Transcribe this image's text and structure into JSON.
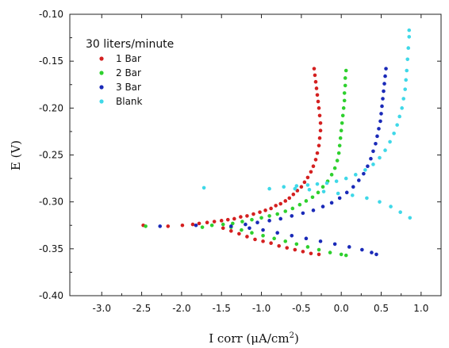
{
  "chart_data": {
    "type": "scatter",
    "title": "",
    "xlabel": "I corr (μA/cm²)",
    "xlabel_main": "I corr (",
    "xlabel_unit_mu": "μ",
    "xlabel_unit_rest": "A/cm",
    "xlabel_unit_sup": "2",
    "xlabel_close": ")",
    "ylabel": "E (V)",
    "xlim": [
      -3.4,
      1.25
    ],
    "ylim": [
      -0.4,
      -0.1
    ],
    "x_ticks": [
      "-3.0",
      "-2.5",
      "-2.0",
      "-1.5",
      "-1.0",
      "-0.5",
      "0.0",
      "0.5",
      "1.0"
    ],
    "x_tick_values": [
      -3.0,
      -2.5,
      -2.0,
      -1.5,
      -1.0,
      -0.5,
      0.0,
      0.5,
      1.0
    ],
    "y_ticks": [
      "-0.10",
      "-0.15",
      "-0.20",
      "-0.25",
      "-0.30",
      "-0.35",
      "-0.40"
    ],
    "y_tick_values": [
      -0.1,
      -0.15,
      -0.2,
      -0.25,
      -0.3,
      -0.35,
      -0.4
    ],
    "grid": false,
    "legend": {
      "title": "30 liters/minute",
      "placement": "top-left"
    },
    "series": [
      {
        "name": "1 Bar",
        "color": "#d42020",
        "points": [
          [
            -2.48,
            -0.325
          ],
          [
            -2.17,
            -0.326
          ],
          [
            -1.99,
            -0.325
          ],
          [
            -1.86,
            -0.324
          ],
          [
            -1.78,
            -0.323
          ],
          [
            -1.68,
            -0.322
          ],
          [
            -1.59,
            -0.321
          ],
          [
            -1.5,
            -0.32
          ],
          [
            -1.42,
            -0.319
          ],
          [
            -1.34,
            -0.318
          ],
          [
            -1.26,
            -0.316
          ],
          [
            -1.18,
            -0.315
          ],
          [
            -1.1,
            -0.313
          ],
          [
            -1.02,
            -0.311
          ],
          [
            -0.95,
            -0.309
          ],
          [
            -0.88,
            -0.307
          ],
          [
            -0.82,
            -0.304
          ],
          [
            -0.76,
            -0.302
          ],
          [
            -0.7,
            -0.299
          ],
          [
            -0.65,
            -0.296
          ],
          [
            -0.6,
            -0.292
          ],
          [
            -0.55,
            -0.288
          ],
          [
            -0.5,
            -0.284
          ],
          [
            -0.46,
            -0.279
          ],
          [
            -0.42,
            -0.274
          ],
          [
            -0.38,
            -0.268
          ],
          [
            -0.35,
            -0.262
          ],
          [
            -0.32,
            -0.255
          ],
          [
            -0.3,
            -0.248
          ],
          [
            -0.28,
            -0.24
          ],
          [
            -0.27,
            -0.232
          ],
          [
            -0.26,
            -0.224
          ],
          [
            -0.26,
            -0.216
          ],
          [
            -0.27,
            -0.208
          ],
          [
            -0.28,
            -0.2
          ],
          [
            -0.29,
            -0.193
          ],
          [
            -0.3,
            -0.186
          ],
          [
            -0.31,
            -0.179
          ],
          [
            -0.32,
            -0.172
          ],
          [
            -0.33,
            -0.165
          ],
          [
            -0.34,
            -0.158
          ],
          [
            -1.48,
            -0.328
          ],
          [
            -1.38,
            -0.331
          ],
          [
            -1.28,
            -0.334
          ],
          [
            -1.18,
            -0.337
          ],
          [
            -1.08,
            -0.34
          ],
          [
            -0.98,
            -0.342
          ],
          [
            -0.88,
            -0.344
          ],
          [
            -0.78,
            -0.347
          ],
          [
            -0.68,
            -0.349
          ],
          [
            -0.58,
            -0.351
          ],
          [
            -0.48,
            -0.353
          ],
          [
            -0.38,
            -0.355
          ],
          [
            -0.28,
            -0.356
          ]
        ]
      },
      {
        "name": "2 Bar",
        "color": "#2ed02e",
        "points": [
          [
            -2.45,
            -0.326
          ],
          [
            -1.74,
            -0.327
          ],
          [
            -1.62,
            -0.325
          ],
          [
            -1.48,
            -0.324
          ],
          [
            -1.36,
            -0.323
          ],
          [
            -1.24,
            -0.321
          ],
          [
            -1.12,
            -0.319
          ],
          [
            -1.0,
            -0.317
          ],
          [
            -0.9,
            -0.315
          ],
          [
            -0.8,
            -0.313
          ],
          [
            -0.7,
            -0.31
          ],
          [
            -0.61,
            -0.307
          ],
          [
            -0.52,
            -0.303
          ],
          [
            -0.44,
            -0.299
          ],
          [
            -0.36,
            -0.295
          ],
          [
            -0.29,
            -0.29
          ],
          [
            -0.23,
            -0.284
          ],
          [
            -0.17,
            -0.278
          ],
          [
            -0.12,
            -0.271
          ],
          [
            -0.08,
            -0.264
          ],
          [
            -0.05,
            -0.256
          ],
          [
            -0.03,
            -0.248
          ],
          [
            -0.02,
            -0.24
          ],
          [
            -0.01,
            -0.232
          ],
          [
            0.0,
            -0.224
          ],
          [
            0.01,
            -0.216
          ],
          [
            0.02,
            -0.208
          ],
          [
            0.03,
            -0.2
          ],
          [
            0.04,
            -0.192
          ],
          [
            0.04,
            -0.184
          ],
          [
            0.05,
            -0.176
          ],
          [
            0.05,
            -0.168
          ],
          [
            0.06,
            -0.16
          ],
          [
            -1.38,
            -0.327
          ],
          [
            -1.25,
            -0.33
          ],
          [
            -1.12,
            -0.333
          ],
          [
            -0.98,
            -0.336
          ],
          [
            -0.84,
            -0.339
          ],
          [
            -0.7,
            -0.342
          ],
          [
            -0.56,
            -0.345
          ],
          [
            -0.42,
            -0.348
          ],
          [
            -0.28,
            -0.351
          ],
          [
            -0.14,
            -0.354
          ],
          [
            0.0,
            -0.356
          ],
          [
            0.06,
            -0.357
          ]
        ]
      },
      {
        "name": "3 Bar",
        "color": "#1a2ab8",
        "points": [
          [
            -2.27,
            -0.326
          ],
          [
            -1.82,
            -0.325
          ],
          [
            -1.38,
            -0.326
          ],
          [
            -1.2,
            -0.324
          ],
          [
            -1.05,
            -0.322
          ],
          [
            -0.9,
            -0.32
          ],
          [
            -0.76,
            -0.318
          ],
          [
            -0.62,
            -0.315
          ],
          [
            -0.48,
            -0.312
          ],
          [
            -0.35,
            -0.309
          ],
          [
            -0.23,
            -0.305
          ],
          [
            -0.12,
            -0.301
          ],
          [
            -0.02,
            -0.296
          ],
          [
            0.07,
            -0.29
          ],
          [
            0.15,
            -0.284
          ],
          [
            0.22,
            -0.277
          ],
          [
            0.28,
            -0.27
          ],
          [
            0.33,
            -0.262
          ],
          [
            0.37,
            -0.254
          ],
          [
            0.4,
            -0.246
          ],
          [
            0.43,
            -0.238
          ],
          [
            0.45,
            -0.23
          ],
          [
            0.47,
            -0.222
          ],
          [
            0.49,
            -0.214
          ],
          [
            0.5,
            -0.206
          ],
          [
            0.51,
            -0.198
          ],
          [
            0.52,
            -0.19
          ],
          [
            0.53,
            -0.182
          ],
          [
            0.54,
            -0.174
          ],
          [
            0.55,
            -0.166
          ],
          [
            0.56,
            -0.158
          ],
          [
            -1.15,
            -0.328
          ],
          [
            -0.98,
            -0.33
          ],
          [
            -0.8,
            -0.333
          ],
          [
            -0.62,
            -0.336
          ],
          [
            -0.44,
            -0.339
          ],
          [
            -0.26,
            -0.342
          ],
          [
            -0.08,
            -0.345
          ],
          [
            0.1,
            -0.348
          ],
          [
            0.26,
            -0.351
          ],
          [
            0.38,
            -0.354
          ],
          [
            0.44,
            -0.356
          ]
        ]
      },
      {
        "name": "Blank",
        "color": "#3fd8e8",
        "points": [
          [
            -1.72,
            -0.285
          ],
          [
            -0.9,
            -0.286
          ],
          [
            -0.72,
            -0.284
          ],
          [
            -0.56,
            -0.283
          ],
          [
            -0.42,
            -0.282
          ],
          [
            -0.3,
            -0.281
          ],
          [
            -0.18,
            -0.28
          ],
          [
            -0.06,
            -0.278
          ],
          [
            0.06,
            -0.275
          ],
          [
            0.18,
            -0.271
          ],
          [
            0.3,
            -0.266
          ],
          [
            0.4,
            -0.26
          ],
          [
            0.48,
            -0.253
          ],
          [
            0.55,
            -0.245
          ],
          [
            0.61,
            -0.236
          ],
          [
            0.66,
            -0.227
          ],
          [
            0.7,
            -0.218
          ],
          [
            0.73,
            -0.209
          ],
          [
            0.76,
            -0.2
          ],
          [
            0.78,
            -0.19
          ],
          [
            0.8,
            -0.18
          ],
          [
            0.81,
            -0.17
          ],
          [
            0.82,
            -0.16
          ],
          [
            0.83,
            -0.148
          ],
          [
            0.84,
            -0.136
          ],
          [
            0.85,
            -0.124
          ],
          [
            0.85,
            -0.117
          ],
          [
            -0.58,
            -0.286
          ],
          [
            -0.4,
            -0.287
          ],
          [
            -0.22,
            -0.289
          ],
          [
            -0.04,
            -0.291
          ],
          [
            0.14,
            -0.293
          ],
          [
            0.32,
            -0.296
          ],
          [
            0.48,
            -0.3
          ],
          [
            0.62,
            -0.305
          ],
          [
            0.74,
            -0.311
          ],
          [
            0.86,
            -0.317
          ]
        ]
      }
    ]
  }
}
